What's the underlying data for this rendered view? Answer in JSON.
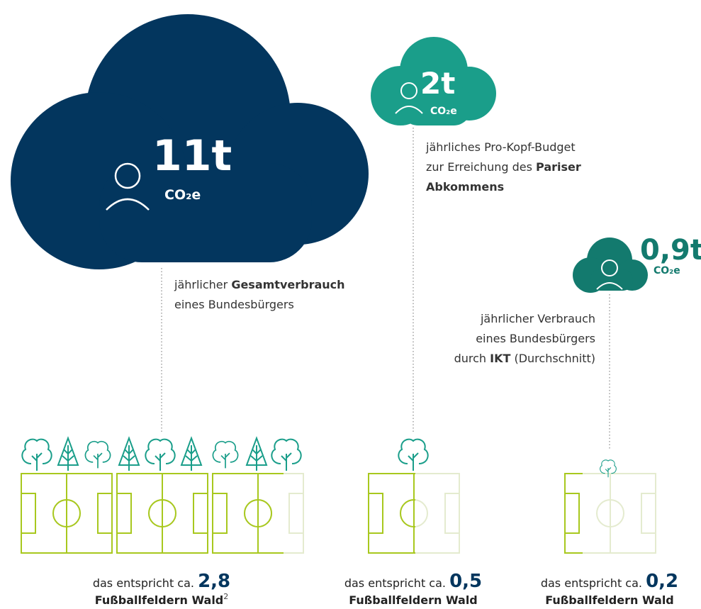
{
  "items": [
    {
      "amount": "11t",
      "unit": "CO₂e",
      "lines": [
        [
          {
            "text": "jährlicher "
          },
          {
            "text": "Gesamtverbrauch",
            "bold": true
          }
        ],
        [
          {
            "text": "eines Bundesbürgers"
          }
        ]
      ],
      "footer": {
        "prefix": "das entspricht ca. ",
        "number": "2,8",
        "label": "Fußballfeldern Wald",
        "footnote": "2"
      }
    },
    {
      "amount": "2t",
      "unit": "CO₂e",
      "lines": [
        [
          {
            "text": "jährliches Pro-Kopf-Budget"
          }
        ],
        [
          {
            "text": "zur Erreichung des "
          },
          {
            "text": "Pariser",
            "bold": true
          }
        ],
        [
          {
            "text": "Abkommens",
            "bold": true
          }
        ]
      ],
      "footer": {
        "prefix": "das entspricht ca. ",
        "number": "0,5",
        "label": "Fußballfeldern Wald"
      }
    },
    {
      "amount": "0,9t",
      "unit": "CO₂e",
      "lines": [
        [
          {
            "text": "jährlicher Verbrauch"
          }
        ],
        [
          {
            "text": "eines Bundesbürgers"
          }
        ],
        [
          {
            "text": "durch "
          },
          {
            "text": "IKT",
            "bold": true
          },
          {
            "text": " (Durchschnitt)"
          }
        ]
      ],
      "footer": {
        "prefix": "das entspricht ca. ",
        "number": "0,2",
        "label": "Fußballfeldern Wald"
      }
    }
  ]
}
